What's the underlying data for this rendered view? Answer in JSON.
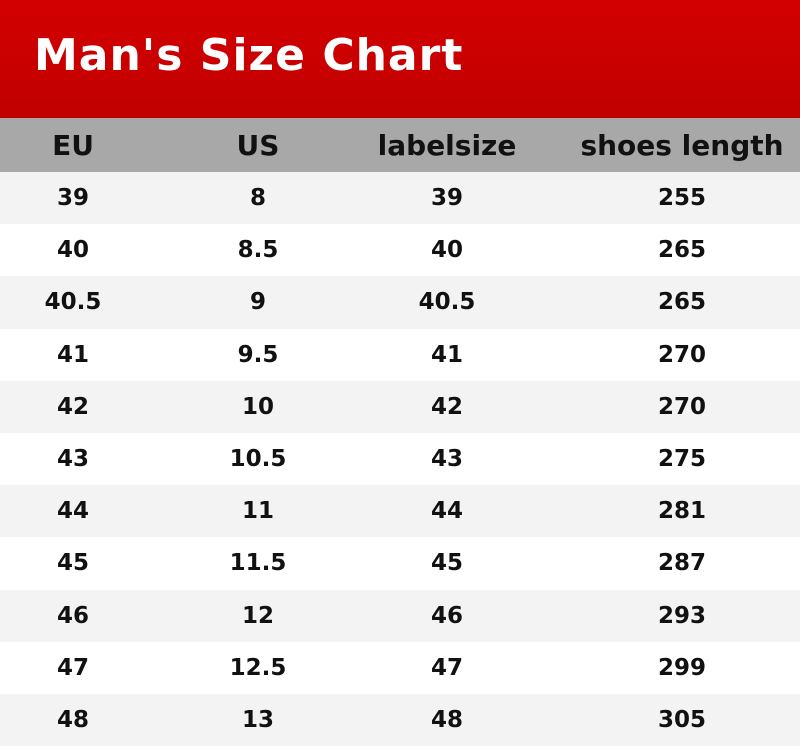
{
  "title": "Man's Size Chart",
  "colors": {
    "title_bar": "#c80000",
    "header_row": "#a8a8a8",
    "alt_row": "#f3f3f3"
  },
  "headers": [
    "EU",
    "US",
    "labelsize",
    "shoes length"
  ],
  "rows": [
    [
      "39",
      "8",
      "39",
      "255"
    ],
    [
      "40",
      "8.5",
      "40",
      "265"
    ],
    [
      "40.5",
      "9",
      "40.5",
      "265"
    ],
    [
      "41",
      "9.5",
      "41",
      "270"
    ],
    [
      "42",
      "10",
      "42",
      "270"
    ],
    [
      "43",
      "10.5",
      "43",
      "275"
    ],
    [
      "44",
      "11",
      "44",
      "281"
    ],
    [
      "45",
      "11.5",
      "45",
      "287"
    ],
    [
      "46",
      "12",
      "46",
      "293"
    ],
    [
      "47",
      "12.5",
      "47",
      "299"
    ],
    [
      "48",
      "13",
      "48",
      "305"
    ]
  ]
}
